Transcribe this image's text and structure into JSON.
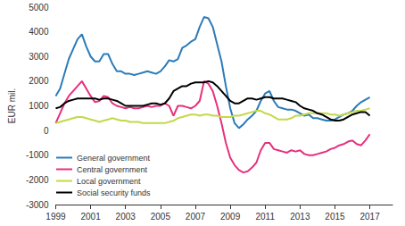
{
  "chart_data": {
    "type": "line",
    "y_label": "EUR mil.",
    "x": [
      1999.0,
      1999.25,
      1999.5,
      1999.75,
      2000.0,
      2000.25,
      2000.5,
      2000.75,
      2001.0,
      2001.25,
      2001.5,
      2001.75,
      2002.0,
      2002.25,
      2002.5,
      2002.75,
      2003.0,
      2003.25,
      2003.5,
      2003.75,
      2004.0,
      2004.25,
      2004.5,
      2004.75,
      2005.0,
      2005.25,
      2005.5,
      2005.75,
      2006.0,
      2006.25,
      2006.5,
      2006.75,
      2007.0,
      2007.25,
      2007.5,
      2007.75,
      2008.0,
      2008.25,
      2008.5,
      2008.75,
      2009.0,
      2009.25,
      2009.5,
      2009.75,
      2010.0,
      2010.25,
      2010.5,
      2010.75,
      2011.0,
      2011.25,
      2011.5,
      2011.75,
      2012.0,
      2012.25,
      2012.5,
      2012.75,
      2013.0,
      2013.25,
      2013.5,
      2013.75,
      2014.0,
      2014.25,
      2014.5,
      2014.75,
      2015.0,
      2015.25,
      2015.5,
      2015.75,
      2016.0,
      2016.25,
      2016.5,
      2016.75,
      2017.0
    ],
    "series": [
      {
        "name": "General government",
        "color": "#2b7bb9",
        "values": [
          1400,
          1700,
          2300,
          2900,
          3300,
          3700,
          3900,
          3400,
          3000,
          2800,
          2800,
          3100,
          3100,
          2700,
          2400,
          2400,
          2300,
          2300,
          2250,
          2300,
          2350,
          2400,
          2350,
          2300,
          2400,
          2600,
          2850,
          2800,
          2900,
          3350,
          3450,
          3600,
          3700,
          4200,
          4600,
          4550,
          4200,
          3500,
          2800,
          1800,
          900,
          300,
          100,
          250,
          450,
          600,
          800,
          1200,
          1500,
          1600,
          1200,
          950,
          900,
          850,
          850,
          800,
          700,
          600,
          650,
          500,
          500,
          450,
          400,
          400,
          450,
          550,
          650,
          700,
          800,
          1000,
          1150,
          1250,
          1350
        ]
      },
      {
        "name": "Central government",
        "color": "#e6307d",
        "values": [
          300,
          700,
          1100,
          1400,
          1600,
          1800,
          2000,
          1700,
          1400,
          1150,
          1200,
          1400,
          1350,
          1100,
          1000,
          950,
          900,
          950,
          900,
          900,
          950,
          1000,
          950,
          1000,
          1000,
          1100,
          1000,
          600,
          1000,
          1000,
          950,
          900,
          1000,
          1200,
          2000,
          1900,
          1600,
          1000,
          300,
          -500,
          -1100,
          -1400,
          -1600,
          -1700,
          -1650,
          -1500,
          -1300,
          -800,
          -500,
          -500,
          -750,
          -800,
          -850,
          -900,
          -800,
          -850,
          -800,
          -950,
          -1000,
          -1000,
          -950,
          -900,
          -850,
          -750,
          -700,
          -600,
          -550,
          -450,
          -400,
          -550,
          -600,
          -400,
          -150
        ]
      },
      {
        "name": "Local government",
        "color": "#c5d84a",
        "values": [
          300,
          350,
          400,
          450,
          500,
          550,
          550,
          500,
          450,
          400,
          350,
          400,
          450,
          500,
          450,
          400,
          400,
          350,
          350,
          350,
          300,
          300,
          300,
          300,
          300,
          300,
          350,
          400,
          500,
          550,
          600,
          650,
          650,
          600,
          650,
          650,
          600,
          600,
          550,
          550,
          550,
          600,
          600,
          650,
          700,
          750,
          800,
          800,
          700,
          650,
          550,
          450,
          450,
          450,
          500,
          600,
          600,
          650,
          700,
          700,
          700,
          700,
          700,
          650,
          650,
          600,
          650,
          700,
          750,
          800,
          800,
          850,
          900
        ]
      },
      {
        "name": "Social security funds",
        "color": "#000000",
        "values": [
          900,
          950,
          1100,
          1200,
          1250,
          1300,
          1300,
          1300,
          1300,
          1300,
          1250,
          1300,
          1300,
          1250,
          1200,
          1100,
          1000,
          1000,
          1000,
          1000,
          1000,
          1050,
          1100,
          1100,
          1050,
          1100,
          1300,
          1600,
          1700,
          1800,
          1800,
          1900,
          1950,
          1950,
          1950,
          2000,
          1950,
          1800,
          1600,
          1400,
          1200,
          1100,
          1100,
          1200,
          1300,
          1300,
          1250,
          1300,
          1350,
          1350,
          1300,
          1300,
          1300,
          1250,
          1200,
          1150,
          1000,
          900,
          850,
          800,
          700,
          650,
          550,
          450,
          400,
          400,
          450,
          550,
          650,
          700,
          750,
          750,
          600
        ]
      }
    ],
    "xlim": [
      1999,
      2018.3
    ],
    "xticks": [
      1999,
      2001,
      2003,
      2005,
      2007,
      2009,
      2011,
      2013,
      2015,
      2017
    ],
    "ylim": [
      -3000,
      5000
    ],
    "yticks": [
      -3000,
      -2000,
      -1000,
      0,
      1000,
      2000,
      3000,
      4000,
      5000
    ],
    "grid": false,
    "legend": "bottom-left"
  }
}
